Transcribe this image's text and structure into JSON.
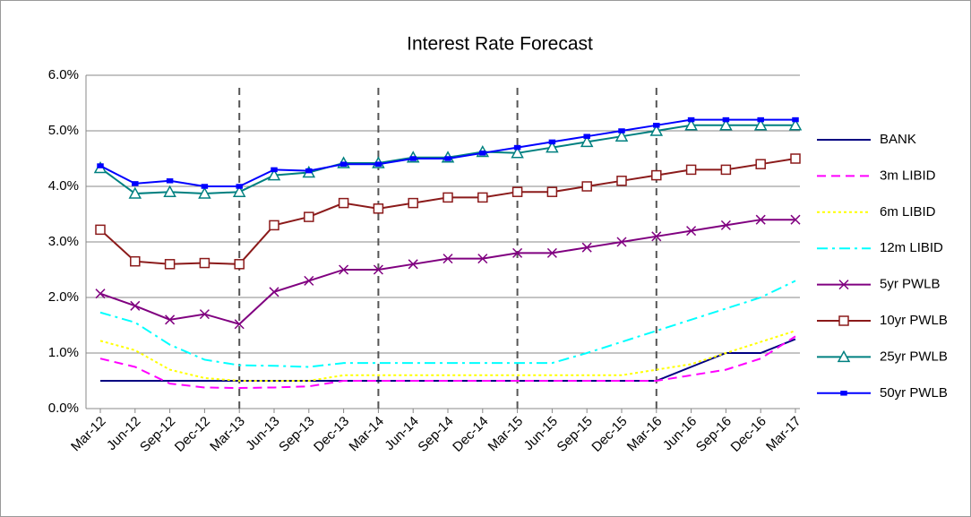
{
  "chart_data": {
    "type": "line",
    "title": "Interest Rate Forecast",
    "categories": [
      "Mar-12",
      "Jun-12",
      "Sep-12",
      "Dec-12",
      "Mar-13",
      "Jun-13",
      "Sep-13",
      "Dec-13",
      "Mar-14",
      "Jun-14",
      "Sep-14",
      "Dec-14",
      "Mar-15",
      "Jun-15",
      "Sep-15",
      "Dec-15",
      "Mar-16",
      "Jun-16",
      "Sep-16",
      "Dec-16",
      "Mar-17"
    ],
    "ylim": [
      0,
      6
    ],
    "yticks": [
      {
        "value": 0,
        "label": "0.0%"
      },
      {
        "value": 1,
        "label": "1.0%"
      },
      {
        "value": 2,
        "label": "2.0%"
      },
      {
        "value": 3,
        "label": "3.0%"
      },
      {
        "value": 4,
        "label": "4.0%"
      },
      {
        "value": 5,
        "label": "5.0%"
      },
      {
        "value": 6,
        "label": "6.0%"
      }
    ],
    "grid": true,
    "legend": "right",
    "reference_categories": [
      "Mar-13",
      "Mar-14",
      "Mar-15",
      "Mar-16"
    ],
    "series": [
      {
        "name": "BANK",
        "color": "#000080",
        "dash": "solid",
        "marker": "none",
        "values": [
          0.5,
          0.5,
          0.5,
          0.5,
          0.5,
          0.5,
          0.5,
          0.5,
          0.5,
          0.5,
          0.5,
          0.5,
          0.5,
          0.5,
          0.5,
          0.5,
          0.5,
          0.75,
          1.0,
          1.0,
          1.25
        ]
      },
      {
        "name": "3m LIBID",
        "color": "#ff00ff",
        "dash": "dashed",
        "marker": "none",
        "values": [
          0.9,
          0.75,
          0.45,
          0.38,
          0.37,
          0.38,
          0.4,
          0.5,
          0.5,
          0.5,
          0.5,
          0.5,
          0.5,
          0.5,
          0.5,
          0.5,
          0.5,
          0.6,
          0.7,
          0.9,
          1.3
        ]
      },
      {
        "name": "6m LIBID",
        "color": "#ffff00",
        "dash": "dotted",
        "marker": "none",
        "values": [
          1.22,
          1.05,
          0.7,
          0.55,
          0.5,
          0.5,
          0.5,
          0.6,
          0.6,
          0.6,
          0.6,
          0.6,
          0.6,
          0.6,
          0.6,
          0.6,
          0.7,
          0.8,
          1.0,
          1.2,
          1.4
        ]
      },
      {
        "name": "12m LIBID",
        "color": "#00ffff",
        "dash": "dashdot",
        "marker": "none",
        "values": [
          1.73,
          1.55,
          1.15,
          0.88,
          0.78,
          0.77,
          0.75,
          0.82,
          0.82,
          0.82,
          0.82,
          0.82,
          0.82,
          0.82,
          1.0,
          1.2,
          1.4,
          1.6,
          1.8,
          2.0,
          2.3
        ]
      },
      {
        "name": "5yr PWLB",
        "color": "#800080",
        "dash": "solid",
        "marker": "cross",
        "values": [
          2.07,
          1.85,
          1.6,
          1.7,
          1.52,
          2.1,
          2.3,
          2.5,
          2.5,
          2.6,
          2.7,
          2.7,
          2.8,
          2.8,
          2.9,
          3.0,
          3.1,
          3.2,
          3.3,
          3.4,
          3.4
        ]
      },
      {
        "name": "10yr PWLB",
        "color": "#8b1a1a",
        "dash": "solid",
        "marker": "square",
        "values": [
          3.22,
          2.65,
          2.6,
          2.62,
          2.6,
          3.3,
          3.45,
          3.7,
          3.6,
          3.7,
          3.8,
          3.8,
          3.9,
          3.9,
          4.0,
          4.1,
          4.2,
          4.3,
          4.3,
          4.4,
          4.5
        ]
      },
      {
        "name": "25yr PWLB",
        "color": "#008080",
        "dash": "solid",
        "marker": "triangle",
        "values": [
          4.33,
          3.87,
          3.9,
          3.87,
          3.9,
          4.2,
          4.25,
          4.42,
          4.42,
          4.52,
          4.52,
          4.62,
          4.6,
          4.7,
          4.8,
          4.9,
          5.0,
          5.1,
          5.1,
          5.1,
          5.1
        ]
      },
      {
        "name": "50yr PWLB",
        "color": "#0000ff",
        "dash": "solid",
        "marker": "dot",
        "values": [
          4.37,
          4.05,
          4.1,
          4.0,
          4.0,
          4.3,
          4.28,
          4.4,
          4.4,
          4.5,
          4.5,
          4.6,
          4.7,
          4.8,
          4.9,
          5.0,
          5.1,
          5.2,
          5.2,
          5.2,
          5.2
        ]
      }
    ]
  }
}
